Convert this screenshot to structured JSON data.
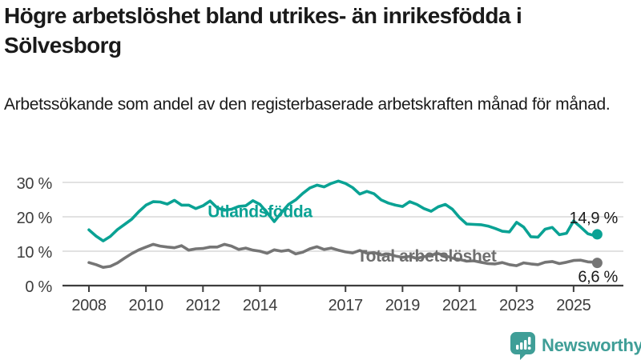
{
  "header": {
    "title": "Högre arbetslöshet bland utrikes- än inrikesfödda i Sölvesborg",
    "subtitle": "Arbetssökande som andel av den registerbaserade arbetskraften månad för månad."
  },
  "footer": {
    "brand": "Newsworthy",
    "logo_color": "#3f9e97"
  },
  "colors": {
    "foreign_born_line": "#0aa294",
    "total_line": "#757575",
    "grid": "#d9d9d9",
    "axis": "#3d3d3d",
    "text": "#1a1a1a"
  },
  "chart_data": {
    "type": "line",
    "title": "",
    "xlabel": "",
    "ylabel": "",
    "x_unit": "decimal-year (monthly share of labour force)",
    "xlim": [
      2007.8,
      2026.2
    ],
    "ylim": [
      0,
      33
    ],
    "grid": true,
    "y_ticks": [
      {
        "value": 0,
        "label": "0 %"
      },
      {
        "value": 10,
        "label": "10 %"
      },
      {
        "value": 20,
        "label": "20 %"
      },
      {
        "value": 30,
        "label": "30 %"
      }
    ],
    "x_ticks": [
      {
        "year": 2008,
        "label": "2008"
      },
      {
        "year": 2010,
        "label": "2010"
      },
      {
        "year": 2012,
        "label": "2012"
      },
      {
        "year": 2014,
        "label": "2014"
      },
      {
        "year": 2017,
        "label": "2017"
      },
      {
        "year": 2019,
        "label": "2019"
      },
      {
        "year": 2021,
        "label": "2021"
      },
      {
        "year": 2023,
        "label": "2023"
      },
      {
        "year": 2025,
        "label": "2025"
      }
    ],
    "series": [
      {
        "name": "Utlandsfödda",
        "color": "#0aa294",
        "end_label": "14,9 %",
        "end_label_side": "above",
        "end_value": 14.9,
        "label": {
          "text": "Utlandsfödda",
          "year": 2014.0,
          "value": 19.9
        },
        "points": [
          [
            2008.0,
            16.2
          ],
          [
            2008.25,
            14.4
          ],
          [
            2008.5,
            13.0
          ],
          [
            2008.75,
            14.3
          ],
          [
            2009.0,
            16.3
          ],
          [
            2009.25,
            17.8
          ],
          [
            2009.5,
            19.3
          ],
          [
            2009.75,
            21.5
          ],
          [
            2010.0,
            23.4
          ],
          [
            2010.25,
            24.4
          ],
          [
            2010.5,
            24.3
          ],
          [
            2010.75,
            23.7
          ],
          [
            2011.0,
            24.8
          ],
          [
            2011.25,
            23.4
          ],
          [
            2011.5,
            23.4
          ],
          [
            2011.75,
            22.4
          ],
          [
            2012.0,
            23.2
          ],
          [
            2012.25,
            24.6
          ],
          [
            2012.5,
            22.6
          ],
          [
            2012.75,
            21.9
          ],
          [
            2013.0,
            22.2
          ],
          [
            2013.25,
            23.0
          ],
          [
            2013.5,
            23.2
          ],
          [
            2013.75,
            24.7
          ],
          [
            2014.0,
            23.6
          ],
          [
            2014.25,
            21.2
          ],
          [
            2014.5,
            18.6
          ],
          [
            2014.75,
            21.2
          ],
          [
            2015.0,
            23.6
          ],
          [
            2015.25,
            24.9
          ],
          [
            2015.5,
            26.8
          ],
          [
            2015.75,
            28.4
          ],
          [
            2016.0,
            29.2
          ],
          [
            2016.25,
            28.7
          ],
          [
            2016.5,
            29.7
          ],
          [
            2016.75,
            30.4
          ],
          [
            2017.0,
            29.7
          ],
          [
            2017.25,
            28.5
          ],
          [
            2017.5,
            26.6
          ],
          [
            2017.75,
            27.4
          ],
          [
            2018.0,
            26.7
          ],
          [
            2018.25,
            24.9
          ],
          [
            2018.5,
            24.0
          ],
          [
            2018.75,
            23.4
          ],
          [
            2019.0,
            23.0
          ],
          [
            2019.25,
            24.4
          ],
          [
            2019.5,
            23.6
          ],
          [
            2019.75,
            22.4
          ],
          [
            2020.0,
            21.6
          ],
          [
            2020.25,
            22.9
          ],
          [
            2020.5,
            23.6
          ],
          [
            2020.75,
            22.2
          ],
          [
            2021.0,
            19.8
          ],
          [
            2021.25,
            17.9
          ],
          [
            2021.5,
            17.8
          ],
          [
            2021.75,
            17.7
          ],
          [
            2022.0,
            17.3
          ],
          [
            2022.25,
            16.6
          ],
          [
            2022.5,
            15.8
          ],
          [
            2022.75,
            15.6
          ],
          [
            2023.0,
            18.4
          ],
          [
            2023.25,
            17.0
          ],
          [
            2023.5,
            14.2
          ],
          [
            2023.75,
            14.1
          ],
          [
            2024.0,
            16.4
          ],
          [
            2024.25,
            16.9
          ],
          [
            2024.5,
            14.8
          ],
          [
            2024.75,
            15.2
          ],
          [
            2025.0,
            18.8
          ],
          [
            2025.25,
            17.0
          ],
          [
            2025.5,
            15.1
          ],
          [
            2025.75,
            14.5
          ],
          [
            2025.83,
            14.9
          ]
        ]
      },
      {
        "name": "Total arbetslöshet",
        "color": "#757575",
        "end_label": "6,6 %",
        "end_label_side": "below",
        "end_value": 6.6,
        "label": {
          "text": "Total arbetslöshet",
          "year": 2019.85,
          "value": 7.0
        },
        "points": [
          [
            2008.0,
            6.7
          ],
          [
            2008.25,
            6.1
          ],
          [
            2008.5,
            5.3
          ],
          [
            2008.75,
            5.6
          ],
          [
            2009.0,
            6.6
          ],
          [
            2009.25,
            8.0
          ],
          [
            2009.5,
            9.3
          ],
          [
            2009.75,
            10.4
          ],
          [
            2010.0,
            11.2
          ],
          [
            2010.25,
            12.0
          ],
          [
            2010.5,
            11.5
          ],
          [
            2010.75,
            11.2
          ],
          [
            2011.0,
            11.0
          ],
          [
            2011.25,
            11.6
          ],
          [
            2011.5,
            10.3
          ],
          [
            2011.75,
            10.7
          ],
          [
            2012.0,
            10.8
          ],
          [
            2012.25,
            11.2
          ],
          [
            2012.5,
            11.2
          ],
          [
            2012.75,
            12.0
          ],
          [
            2013.0,
            11.5
          ],
          [
            2013.25,
            10.5
          ],
          [
            2013.5,
            10.9
          ],
          [
            2013.75,
            10.3
          ],
          [
            2014.0,
            10.0
          ],
          [
            2014.25,
            9.4
          ],
          [
            2014.5,
            10.4
          ],
          [
            2014.75,
            10.0
          ],
          [
            2015.0,
            10.3
          ],
          [
            2015.25,
            9.2
          ],
          [
            2015.5,
            9.7
          ],
          [
            2015.75,
            10.7
          ],
          [
            2016.0,
            11.3
          ],
          [
            2016.25,
            10.5
          ],
          [
            2016.5,
            10.9
          ],
          [
            2016.75,
            10.3
          ],
          [
            2017.0,
            9.8
          ],
          [
            2017.25,
            9.5
          ],
          [
            2017.5,
            10.2
          ],
          [
            2017.75,
            9.4
          ],
          [
            2018.0,
            9.6
          ],
          [
            2018.25,
            8.9
          ],
          [
            2018.5,
            9.2
          ],
          [
            2018.75,
            8.6
          ],
          [
            2019.0,
            8.2
          ],
          [
            2019.25,
            8.5
          ],
          [
            2019.5,
            7.9
          ],
          [
            2019.75,
            8.4
          ],
          [
            2020.0,
            8.9
          ],
          [
            2020.25,
            9.3
          ],
          [
            2020.5,
            8.7
          ],
          [
            2020.75,
            8.0
          ],
          [
            2021.0,
            7.6
          ],
          [
            2021.25,
            7.1
          ],
          [
            2021.5,
            7.2
          ],
          [
            2021.75,
            6.8
          ],
          [
            2022.0,
            6.4
          ],
          [
            2022.25,
            6.3
          ],
          [
            2022.5,
            6.7
          ],
          [
            2022.75,
            6.1
          ],
          [
            2023.0,
            5.8
          ],
          [
            2023.25,
            6.6
          ],
          [
            2023.5,
            6.3
          ],
          [
            2023.75,
            6.1
          ],
          [
            2024.0,
            6.8
          ],
          [
            2024.25,
            7.0
          ],
          [
            2024.5,
            6.4
          ],
          [
            2024.75,
            6.8
          ],
          [
            2025.0,
            7.3
          ],
          [
            2025.25,
            7.4
          ],
          [
            2025.5,
            6.9
          ],
          [
            2025.75,
            6.8
          ],
          [
            2025.83,
            6.6
          ]
        ]
      }
    ]
  }
}
